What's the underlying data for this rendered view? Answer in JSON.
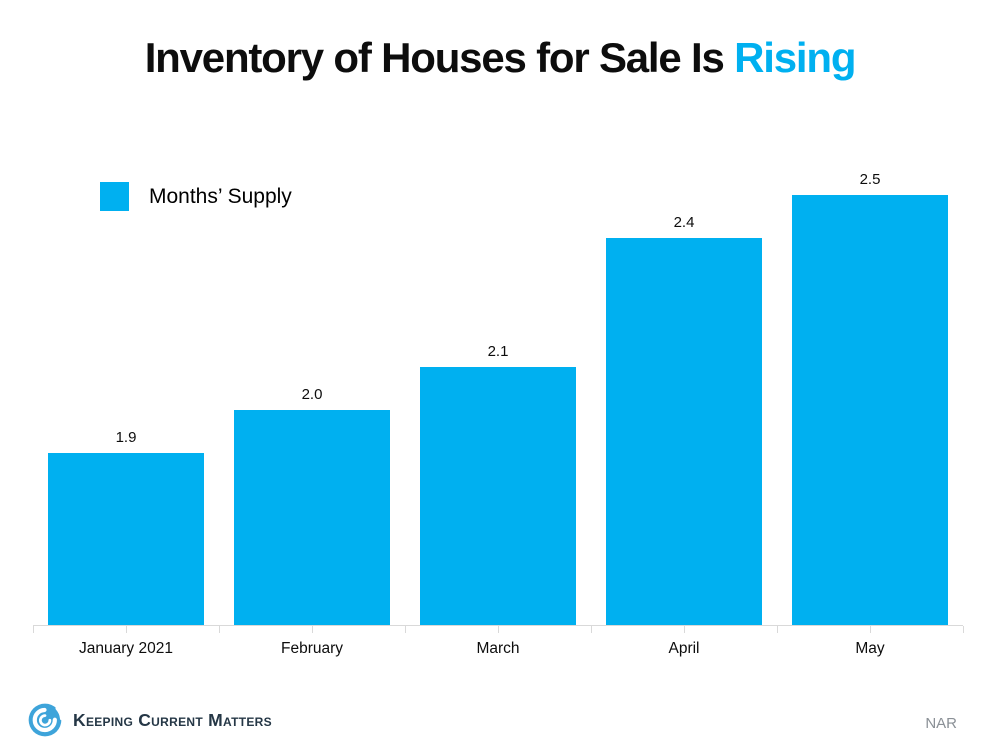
{
  "title": {
    "black_part": "Inventory of Houses for Sale Is ",
    "accent_part": "Rising"
  },
  "legend": {
    "label": "Months’ Supply"
  },
  "chart_data": {
    "type": "bar",
    "title": "Inventory of Houses for Sale Is Rising",
    "categories": [
      "January 2021",
      "February",
      "March",
      "April",
      "May"
    ],
    "values": [
      1.9,
      2.0,
      2.1,
      2.4,
      2.5
    ],
    "data_labels": [
      "1.9",
      "2.0",
      "2.1",
      "2.4",
      "2.5"
    ],
    "series_name": "Months’ Supply",
    "xlabel": "",
    "ylabel": "",
    "ylim": [
      1.5,
      2.6
    ],
    "grid": false,
    "legend_position": "top-left",
    "y_axis_visible": false,
    "x_tick_interval": "half-category"
  },
  "footer": {
    "brand": "Keeping Current Matters",
    "source": "NAR"
  },
  "colors": {
    "accent": "#00b0f0",
    "bar": "#00b0f0",
    "axis": "#d9d9d9",
    "logo_blue": "#3ea4da",
    "brand_text": "#253746",
    "source_text": "#8a9096"
  }
}
